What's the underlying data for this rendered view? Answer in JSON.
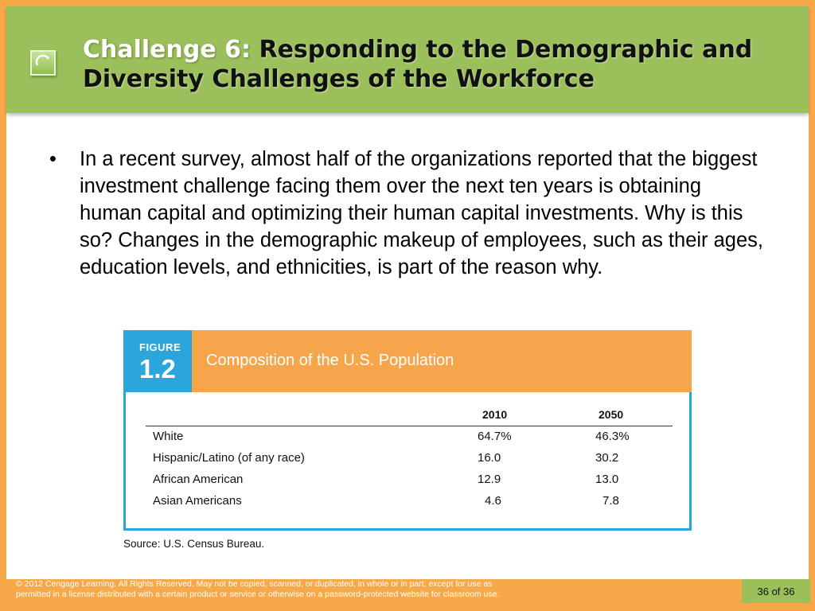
{
  "title": {
    "lead": "Challenge 6:",
    "rest": " Responding to the Demographic and Diversity Challenges of the Workforce"
  },
  "bullet": {
    "marker": "•",
    "text": "In a recent survey, almost half of the organizations reported that the biggest investment challenge facing them over the next ten years is obtaining human capital and optimizing their human capital investments. Why is this so? Changes in the demographic makeup of employees, such as their ages, education levels, and ethnicities, is part of the reason why."
  },
  "figure": {
    "label": "FIGURE",
    "number": "1.2",
    "title": "Composition of the U.S. Population",
    "columns": [
      "2010",
      "2050"
    ],
    "rows": [
      {
        "label": "White",
        "v2010": "64.7%",
        "v2050": "46.3%"
      },
      {
        "label": "Hispanic/Latino (of any race)",
        "v2010": "16.0",
        "v2050": "30.2"
      },
      {
        "label": "African American",
        "v2010": "12.9",
        "v2050": "13.0"
      },
      {
        "label": "Asian Americans",
        "v2010": "4.6",
        "v2050": "7.8"
      }
    ],
    "source": "Source: U.S. Census Bureau."
  },
  "footer": {
    "line1": "© 2012 Cengage Learning. All Rights Reserved. May not be copied, scanned, or duplicated, in whole or in part, except for use as",
    "line2": "permitted in a license distributed with a certain product or service or otherwise on a password-protected website for classroom use.",
    "page": "36 of  36"
  },
  "colors": {
    "background_orange": "#f7a94a",
    "title_green": "#9bbf5a",
    "figure_blue": "#2aa6dd",
    "figure_orange": "#f6a54a"
  }
}
